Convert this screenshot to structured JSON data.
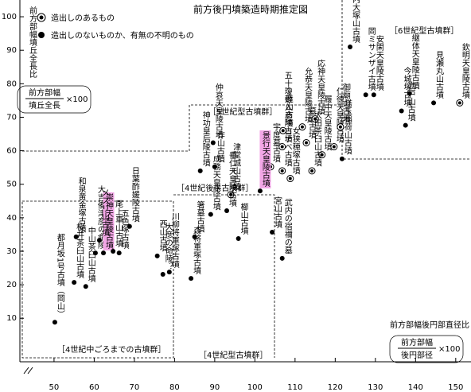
{
  "chart_data": {
    "type": "scatter",
    "title": "前方後円墳築造時期推定図",
    "y_label": "前方部幅墳丘全長比",
    "y_formula": {
      "numerator": "前方部幅",
      "denominator": "墳丘全長",
      "factor": "×100"
    },
    "x_label": "前方部幅後円部直径比",
    "x_formula": {
      "numerator": "前方部幅",
      "denominator": "後円部径",
      "factor": "×100"
    },
    "xlim": [
      41.5,
      153.8
    ],
    "ylim": [
      -3,
      105
    ],
    "xticks": [
      50,
      60,
      70,
      80,
      90,
      100,
      110,
      120,
      130,
      140,
      150
    ],
    "yticks": [
      10,
      20,
      30,
      40,
      50,
      60,
      70,
      80,
      90,
      100
    ],
    "grid": false,
    "highlight_color": "#f2a6e6",
    "groups": [
      "［4世紀中ごろまでの古墳群］",
      "［4世紀後半古墳群］",
      "［4世紀型古墳群］",
      "［5世紀型古墳群］",
      "［6世紀型古墳群］"
    ],
    "series": [
      {
        "name": "造出しのあるもの",
        "marker": "◎",
        "color": "#000000",
        "x": [
          94,
          103.9,
          106.8,
          106.8,
          107,
          111.8,
          112.8,
          115,
          116.7,
          119.7,
          121.3,
          108.8,
          114.2,
          151
        ],
        "values": [
          46.9,
          55.2,
          54,
          61.2,
          66,
          67.1,
          62.4,
          69.5,
          58.8,
          61.2,
          67.1,
          51.7,
          54,
          74.3
        ],
        "labels": [
          "津堂城山古墳",
          "宇度墓古墳",
          "コナベ古墳",
          "五十瓊敷入彦陵古墳",
          "造山古墳",
          "允恭天皇陵古墳",
          "墓山古墳",
          "応神天皇陵古墳",
          "履中天皇陵古墳",
          "仁徳天皇陵古墳",
          "御廟山古墳",
          "女狭穂塚古墳",
          "太田茶臼山古墳",
          "欽明天皇陵古墳"
        ]
      },
      {
        "name": "造出しのないものか、有無の不明のもの",
        "marker": "●",
        "color": "#000000",
        "x": [
          50.2,
          55,
          57.9,
          55.5,
          60.3,
          62.3,
          61.3,
          64.7,
          66.2,
          68.8,
          75.7,
          78.7,
          77.1,
          86.4,
          90,
          89.6,
          123.7,
          127.6,
          129.6,
          136.5,
          138.5,
          137.5,
          144.5,
          121.7,
          104.3,
          101.3,
          106.8,
          84.1,
          95.9,
          93,
          85,
          89
        ],
        "values": [
          8.8,
          20.7,
          19.5,
          34.3,
          29.5,
          29.5,
          33.3,
          30,
          29.5,
          37.4,
          28.6,
          23.8,
          23.1,
          54,
          55.2,
          62.4,
          91,
          76.7,
          76.7,
          71.9,
          77.1,
          67.6,
          74.3,
          57.6,
          35.7,
          48,
          27.9,
          21.9,
          33.8,
          42.1,
          34.3,
          41
        ],
        "labels": [
          "都月坂1号古墳（岡山）",
          "桜井茶臼山古墳",
          "中山茶臼山古墳",
          "和泉黄金塚古墳",
          "大吉備津彦の命陵",
          "崇神天皇陵古墳",
          "メスリ山古墳",
          "尾上車山古墳",
          "五色塚古墳",
          "日葉酢媛陵古墳",
          "西山古墳",
          "川柳将軍塚古墳",
          "大彦の命陵？",
          "神功皇后陵古墳",
          "作山古墳",
          "仲哀天皇陵古墳",
          "河内大塚山古墳",
          "岡ミサンザイ古墳",
          "安閑天皇陵古墳",
          "今城塚古墳",
          "継体天皇陵古墳",
          "岩戸山古墳",
          "見瀬丸山古墳",
          "塔玉稲荷山古墳",
          "宮山古墳",
          "景行天皇陵古墳",
          "武内の宿禰の墓",
          "森将軍塚古墳",
          "櫛山古墳",
          "垂仁天皇陵古墳",
          "箸墓古墳",
          "成務天皇陵古墳"
        ],
        "highlight": [
          false,
          false,
          false,
          false,
          false,
          true,
          false,
          false,
          false,
          false,
          false,
          false,
          false,
          false,
          false,
          false,
          false,
          false,
          false,
          false,
          false,
          false,
          false,
          false,
          false,
          true,
          false,
          false,
          false,
          false,
          false,
          false
        ]
      }
    ]
  }
}
